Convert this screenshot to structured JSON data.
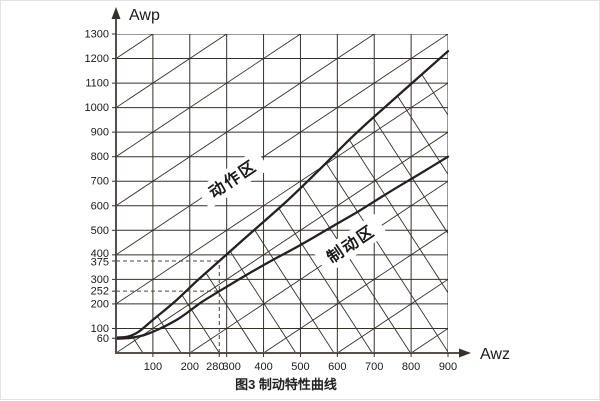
{
  "caption": "图3  制动特性曲线",
  "chart_data": {
    "type": "line",
    "title": "图3 制动特性曲线",
    "xlabel": "Awz",
    "ylabel": "Awp",
    "xlim": [
      0,
      900
    ],
    "ylim": [
      0,
      1300
    ],
    "grid_on": true,
    "x_ticks": [
      100,
      200,
      280,
      300,
      400,
      500,
      600,
      700,
      800,
      900
    ],
    "y_ticks": [
      60,
      100,
      200,
      252,
      300,
      375,
      400,
      500,
      600,
      700,
      800,
      900,
      1000,
      1100,
      1200,
      1300
    ],
    "grid": {
      "horizontal_lines_every": 100,
      "vertical_lines_every": 100,
      "diag_up_family": {
        "data_slope": 1,
        "intercepts": [
          -800,
          -600,
          -400,
          -200,
          0,
          200,
          400,
          600,
          800,
          1000,
          1200
        ]
      },
      "diag_down_family": {
        "data_slope": -2.33,
        "x_axis_crossings": [
          73,
          176.6,
          280.2,
          383.8,
          487.4,
          591,
          694.6,
          798.2,
          901.8,
          1005.4,
          1109,
          1212.6,
          1316.2
        ],
        "clipped_to": "region below action-zone curve"
      }
    },
    "series": [
      {
        "name": "动作区",
        "role": "action-zone-boundary",
        "points": [
          [
            0,
            63
          ],
          [
            30,
            66
          ],
          [
            60,
            85
          ],
          [
            100,
            135
          ],
          [
            160,
            210
          ],
          [
            220,
            295
          ],
          [
            280,
            375
          ],
          [
            370,
            495
          ],
          [
            460,
            615
          ],
          [
            550,
            745
          ],
          [
            640,
            880
          ],
          [
            720,
            990
          ],
          [
            810,
            1110
          ],
          [
            900,
            1230
          ]
        ]
      },
      {
        "name": "制动区",
        "role": "braking-zone-boundary",
        "points": [
          [
            0,
            58
          ],
          [
            40,
            62
          ],
          [
            80,
            75
          ],
          [
            120,
            100
          ],
          [
            170,
            140
          ],
          [
            230,
            205
          ],
          [
            280,
            252
          ],
          [
            350,
            315
          ],
          [
            420,
            375
          ],
          [
            500,
            440
          ],
          [
            580,
            510
          ],
          [
            660,
            580
          ],
          [
            740,
            655
          ],
          [
            820,
            727
          ],
          [
            900,
            800
          ]
        ]
      }
    ],
    "zone_labels": [
      {
        "text": "动作区",
        "x": 317,
        "y": 709,
        "rotation_deg": -34
      },
      {
        "text": "制动区",
        "x": 637,
        "y": 444,
        "rotation_deg": -34
      }
    ],
    "dashed_guides": [
      {
        "from": [
          0,
          375
        ],
        "to": [
          280,
          375
        ]
      },
      {
        "from": [
          0,
          252
        ],
        "to": [
          280,
          252
        ]
      },
      {
        "from": [
          280,
          0
        ],
        "to": [
          280,
          375
        ]
      }
    ],
    "colors": {
      "line": "#35302a",
      "curve": "#242120",
      "dashed": "#4a4540",
      "background": "#ffffff"
    }
  }
}
